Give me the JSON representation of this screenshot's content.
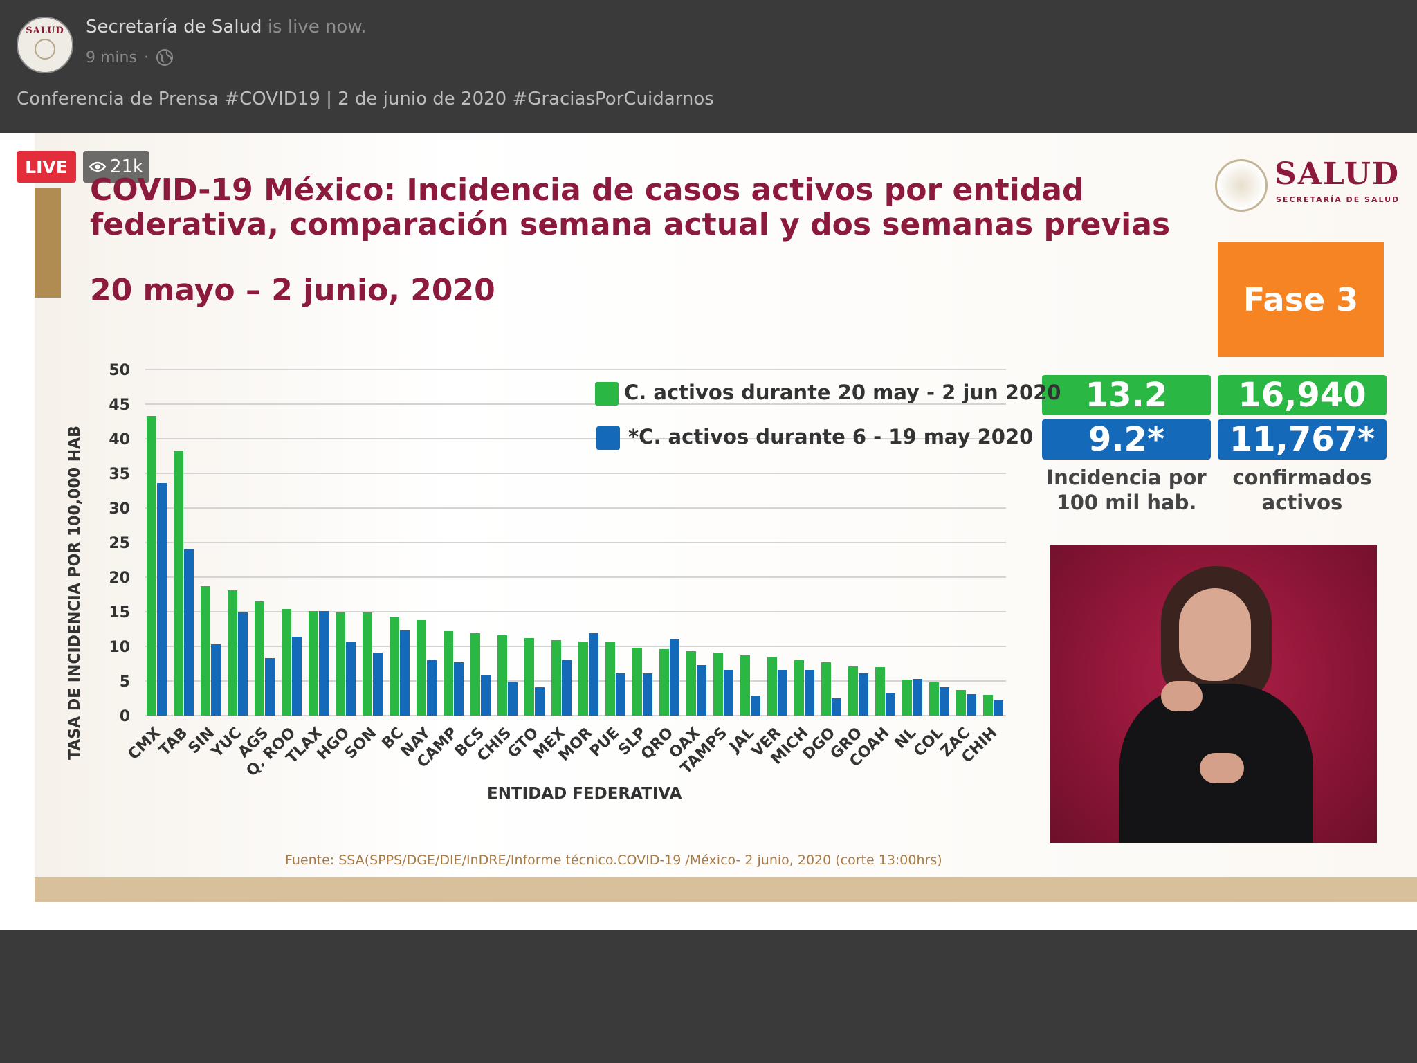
{
  "post": {
    "page_name": "Secretaría de Salud",
    "live_suffix": "is live now.",
    "time": "9 mins",
    "separator": "·",
    "globe_icon": "globe-icon",
    "title": "Conferencia de Prensa #COVID19 | 2 de junio de 2020 #GraciasPorCuidarnos",
    "avatar_text": "SALUD"
  },
  "video": {
    "live_label": "LIVE",
    "views": "21k",
    "eye_icon": "eye-icon"
  },
  "slide": {
    "title_line1": "COVID-19 México: Incidencia de casos activos por entidad",
    "title_line2": "federativa, comparación semana actual y dos semanas previas",
    "date_range": "20 mayo – 2 junio, 2020",
    "logo_word": "SALUD",
    "logo_sub": "SECRETARÍA DE SALUD",
    "phase": "Fase 3",
    "incidence_current": "13.2",
    "incidence_prev": "9.2*",
    "active_current": "16,940",
    "active_prev": "11,767*",
    "incidence_label_1": "Incidencia por",
    "incidence_label_2": "100 mil hab.",
    "active_label_1": "confirmados",
    "active_label_2": "activos",
    "source": "Fuente: SSA(SPPS/DGE/DIE/InDRE/Informe técnico.COVID-19 /México- 2 junio, 2020 (corte 13:00hrs)",
    "colors": {
      "green": "#2bb744",
      "blue": "#1469b8",
      "title": "#8b1a3c",
      "phase": "#f68422"
    }
  },
  "chart_data": {
    "type": "bar",
    "xlabel": "ENTIDAD FEDERATIVA",
    "ylabel": "TASA DE INCIDENCIA  POR 100,000 HAB",
    "ylim": [
      0,
      50
    ],
    "yticks": [
      0,
      5,
      10,
      15,
      20,
      25,
      30,
      35,
      40,
      45,
      50
    ],
    "grid": true,
    "legend_position": "top-right",
    "categories": [
      "CMX",
      "TAB",
      "SIN",
      "YUC",
      "AGS",
      "Q. ROO",
      "TLAX",
      "HGO",
      "SON",
      "BC",
      "NAY",
      "CAMP",
      "BCS",
      "CHIS",
      "GTO",
      "MEX",
      "MOR",
      "PUE",
      "SLP",
      "QRO",
      "OAX",
      "TAMPS",
      "JAL",
      "VER",
      "MICH",
      "DGO",
      "GRO",
      "COAH",
      "NL",
      "COL",
      "ZAC",
      "CHIH"
    ],
    "series": [
      {
        "name": "C. activos durante 20 may - 2 jun 2020",
        "color": "#2bb744",
        "values": [
          43.3,
          38.3,
          18.7,
          18.1,
          16.5,
          15.4,
          15.1,
          14.9,
          14.9,
          14.3,
          13.8,
          12.2,
          11.9,
          11.6,
          11.2,
          10.9,
          10.7,
          10.6,
          9.8,
          9.6,
          9.3,
          9.1,
          8.7,
          8.4,
          8.0,
          7.7,
          7.1,
          7.0,
          5.2,
          4.8,
          3.7,
          3.0
        ]
      },
      {
        "name": "*C. activos durante  6 - 19 may 2020",
        "color": "#1469b8",
        "values": [
          33.6,
          24.0,
          10.3,
          14.9,
          8.3,
          11.4,
          15.1,
          10.6,
          9.1,
          12.3,
          8.0,
          7.7,
          5.8,
          4.8,
          4.1,
          8.0,
          11.9,
          6.1,
          6.1,
          11.1,
          7.3,
          6.6,
          2.9,
          6.6,
          6.6,
          2.5,
          6.1,
          3.2,
          5.3,
          4.1,
          3.1,
          2.2
        ]
      }
    ]
  }
}
